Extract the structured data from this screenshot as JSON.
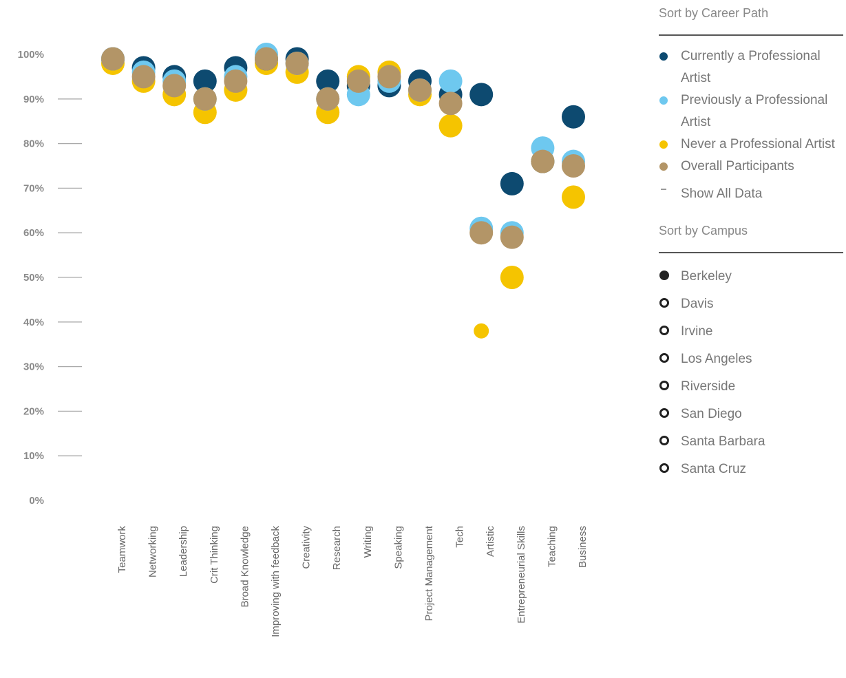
{
  "chart_data": {
    "type": "scatter",
    "categories": [
      "Teamwork",
      "Networking",
      "Leadership",
      "Crit Thinking",
      "Broad Knowledge",
      "Improving with feedback",
      "Creativity",
      "Research",
      "Writing",
      "Speaking",
      "Project Management",
      "Tech",
      "Artistic",
      "Entrepreneurial Skills",
      "Teaching",
      "Business"
    ],
    "y_ticks": [
      "0%",
      "10%",
      "20%",
      "30%",
      "40%",
      "50%",
      "60%",
      "70%",
      "80%",
      "90%",
      "100%"
    ],
    "ylim": [
      0,
      100
    ],
    "series": [
      {
        "name": "Never a Professional Artist",
        "color": "#f5c400",
        "size": "large",
        "values": [
          98,
          94,
          91,
          87,
          92,
          98,
          96,
          87,
          95,
          96,
          91,
          84,
          38,
          50,
          76,
          68
        ]
      },
      {
        "name": "Currently a Professional Artist",
        "color": "#0d4a70",
        "size": "large",
        "values": [
          99,
          97,
          95,
          94,
          97,
          99,
          99,
          94,
          93,
          93,
          94,
          91,
          91,
          71,
          76,
          86
        ]
      },
      {
        "name": "Previously a Professional Artist",
        "color": "#6ec8ef",
        "size": "large",
        "values": [
          99,
          96,
          94,
          90,
          95,
          100,
          98,
          90,
          91,
          94,
          92,
          94,
          61,
          60,
          79,
          76
        ]
      },
      {
        "name": "Overall Participants",
        "color": "#b39567",
        "size": "large",
        "values": [
          99,
          95,
          93,
          90,
          94,
          99,
          98,
          90,
          94,
          95,
          92,
          89,
          60,
          59,
          76,
          75
        ]
      }
    ]
  },
  "legend": {
    "career_heading": "Sort by Career Path",
    "career_items": [
      {
        "label": "Currently a Professional Artist",
        "color": "#0d4a70"
      },
      {
        "label": "Previously a Professional Artist",
        "color": "#6ec8ef"
      },
      {
        "label": "Never a Professional Artist",
        "color": "#f5c400"
      },
      {
        "label": "Overall Participants",
        "color": "#b39567"
      }
    ],
    "show_all": "Show All Data",
    "campus_heading": "Sort by Campus",
    "campus_items": [
      {
        "label": "Berkeley",
        "selected": true
      },
      {
        "label": "Davis",
        "selected": false
      },
      {
        "label": "Irvine",
        "selected": false
      },
      {
        "label": "Los Angeles",
        "selected": false
      },
      {
        "label": "Riverside",
        "selected": false
      },
      {
        "label": "San Diego",
        "selected": false
      },
      {
        "label": "Santa Barbara",
        "selected": false
      },
      {
        "label": "Santa Cruz",
        "selected": false
      }
    ]
  }
}
